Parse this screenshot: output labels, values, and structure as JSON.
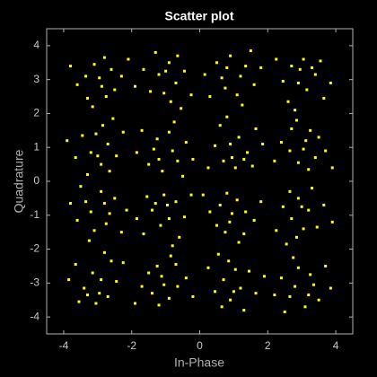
{
  "chart_data": {
    "type": "scatter",
    "title": "Scatter plot",
    "xlabel": "In-Phase",
    "ylabel": "Quadrature",
    "color": "#ffff00",
    "xlim": [
      -4.5,
      4.5
    ],
    "ylim": [
      -4.5,
      4.5
    ],
    "xticks": [
      -4,
      -2,
      0,
      2,
      4
    ],
    "yticks": [
      -4,
      -3,
      -2,
      -1,
      0,
      1,
      2,
      3,
      4
    ],
    "x": [
      -2.88,
      -3.35,
      -2.6,
      -3.1,
      -2.75,
      -3.6,
      -2.95,
      -2.3,
      -3.3,
      -2.8,
      -3.8,
      -2.5,
      -3.15,
      -2.1,
      -1.2,
      -0.7,
      -1.45,
      -0.9,
      -0.45,
      -1.05,
      -0.65,
      -1.65,
      -0.85,
      -1.3,
      -0.25,
      -1.9,
      -1.0,
      -0.55,
      1.2,
      0.75,
      1.6,
      0.5,
      1.1,
      1.35,
      0.9,
      0.3,
      1.8,
      0.65,
      1.25,
      0.8,
      1.5,
      0.15,
      2.9,
      3.4,
      2.7,
      3.15,
      2.45,
      3.65,
      3.05,
      2.6,
      3.3,
      2.25,
      3.85,
      2.8,
      3.55,
      2.95,
      -3.2,
      -2.7,
      -3.45,
      -2.9,
      -2.45,
      -3.05,
      -2.65,
      -3.65,
      -2.85,
      -3.3,
      -2.25,
      -3.9,
      -3.0,
      -2.55,
      -0.8,
      -1.25,
      -0.4,
      -1.5,
      -0.9,
      -0.65,
      -1.1,
      -1.7,
      -0.2,
      -1.35,
      -0.75,
      -1.2,
      -0.5,
      -1.85,
      0.9,
      1.4,
      0.7,
      1.15,
      0.45,
      1.65,
      1.05,
      0.6,
      1.3,
      0.25,
      1.85,
      0.8,
      1.55,
      0.95,
      3.12,
      2.65,
      3.4,
      2.9,
      3.25,
      2.4,
      3.05,
      3.7,
      2.7,
      3.2,
      2.2,
      3.5,
      2.85,
      3.9,
      -3.2,
      -2.75,
      -3.6,
      -2.5,
      -3.1,
      -3.35,
      -2.9,
      -2.3,
      -3.8,
      -2.65,
      -3.25,
      -2.8,
      -3.5,
      -2.15,
      -0.9,
      -1.4,
      -0.7,
      -1.15,
      -0.45,
      -1.65,
      -1.05,
      -0.6,
      -1.3,
      -0.25,
      -1.85,
      -0.8,
      -1.55,
      -0.95,
      0.88,
      1.35,
      0.6,
      1.1,
      0.75,
      1.6,
      0.95,
      0.3,
      1.3,
      0.8,
      1.8,
      0.5,
      1.15,
      0.1,
      3.2,
      2.7,
      3.45,
      2.9,
      2.45,
      3.05,
      2.65,
      3.65,
      2.85,
      3.3,
      2.25,
      3.9,
      3.0,
      2.55,
      -2.9,
      -3.4,
      -2.7,
      -3.15,
      -2.45,
      -3.65,
      -3.05,
      -2.6,
      -3.3,
      -2.25,
      -3.85,
      -2.8,
      -3.55,
      -2.95,
      -1.12,
      -0.65,
      -1.4,
      -0.9,
      -1.25,
      -0.4,
      -1.05,
      -1.7,
      -0.7,
      -1.2,
      -0.2,
      -1.5,
      -0.85,
      -1.9,
      1.2,
      0.7,
      1.45,
      0.9,
      0.45,
      1.05,
      0.65,
      1.65,
      0.85,
      1.3,
      0.25,
      1.9,
      1.0,
      0.55,
      2.8,
      3.25,
      2.4,
      3.5,
      2.9,
      2.65,
      3.1,
      3.7,
      2.2,
      3.35,
      2.75,
      3.2,
      2.5,
      3.85
    ],
    "y": [
      2.8,
      3.1,
      3.3,
      3.45,
      2.5,
      2.85,
      3.05,
      3.1,
      2.45,
      3.65,
      3.4,
      2.7,
      2.2,
      3.6,
      3.15,
      2.9,
      2.65,
      3.5,
      3.25,
      2.6,
      3.7,
      3.3,
      2.35,
      3.8,
      2.55,
      2.8,
      3.25,
      2.15,
      3.1,
      2.75,
      2.85,
      3.5,
      2.55,
      3.4,
      3.7,
      2.5,
      3.35,
      3.05,
      2.25,
      3.35,
      3.85,
      3.15,
      2.9,
      3.15,
      3.4,
      2.7,
      2.95,
      2.45,
      3.6,
      2.35,
      3.35,
      3.6,
      2.9,
      2.1,
      3.55,
      3.3,
      0.85,
      1.1,
      1.35,
      0.5,
      0.75,
      1.4,
      0.3,
      0.7,
      1.65,
      0.2,
      1.45,
      1.2,
      0.75,
      1.85,
      0.9,
      1.25,
      1.15,
      0.5,
      1.45,
      0.6,
      0.3,
      1.5,
      0.65,
      0.95,
      1.75,
      0.65,
      0.15,
      0.85,
      1.1,
      0.85,
      0.6,
      1.3,
      1.05,
      1.55,
      0.4,
      1.65,
      0.65,
      0.4,
      1.1,
      1.9,
      0.45,
      0.7,
      1.2,
      0.9,
      0.7,
      0.55,
      1.5,
      1.15,
      0.95,
      0.9,
      1.55,
      0.35,
      0.6,
      1.3,
      1.8,
      0.4,
      -0.9,
      -1.25,
      -1.15,
      -0.5,
      -1.45,
      -0.6,
      -0.3,
      -1.5,
      -0.65,
      -0.95,
      -1.75,
      -0.65,
      -0.15,
      -0.85,
      -1.1,
      -0.85,
      -0.6,
      -1.3,
      -1.05,
      -1.55,
      -0.4,
      -1.65,
      -0.65,
      -0.4,
      -1.1,
      -1.9,
      -0.45,
      -0.7,
      -1.2,
      -0.9,
      -0.7,
      -0.55,
      -1.5,
      -1.15,
      -0.95,
      -0.9,
      -1.55,
      -0.35,
      -0.6,
      -1.3,
      -1.8,
      -0.4,
      -0.85,
      -1.1,
      -1.35,
      -0.5,
      -0.75,
      -1.4,
      -0.3,
      -0.7,
      -1.65,
      -0.2,
      -1.45,
      -1.2,
      -0.75,
      -1.85,
      -2.9,
      -3.15,
      -3.4,
      -2.7,
      -2.95,
      -2.45,
      -3.6,
      -2.35,
      -3.35,
      -2.4,
      -2.9,
      -2.1,
      -3.55,
      -3.3,
      -2.8,
      -3.1,
      -3.3,
      -3.45,
      -2.5,
      -2.85,
      -3.05,
      -3.1,
      -2.45,
      -3.65,
      -3.4,
      -2.7,
      -2.2,
      -3.6,
      -3.15,
      -2.9,
      -2.65,
      -3.5,
      -3.25,
      -2.6,
      -3.7,
      -3.3,
      -2.35,
      -3.8,
      -2.55,
      -2.8,
      -3.25,
      -2.15,
      -3.1,
      -2.75,
      -2.85,
      -3.5,
      -2.55,
      -3.4,
      -3.7,
      -2.5,
      -3.35,
      -3.05,
      -2.25,
      -3.35,
      -3.85,
      -3.15
    ]
  }
}
